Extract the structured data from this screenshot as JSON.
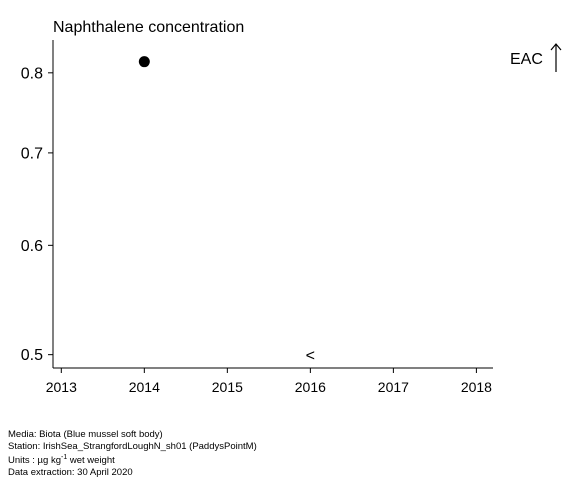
{
  "chart_data": {
    "type": "scatter",
    "title": "Naphthalene concentration",
    "xlabel": "",
    "ylabel": "",
    "xlim": [
      2012.9,
      2018.2
    ],
    "ylim": [
      0.489,
      0.845
    ],
    "y_scale": "log",
    "x_ticks": [
      2013,
      2014,
      2015,
      2016,
      2017,
      2018
    ],
    "y_ticks": [
      0.5,
      0.6,
      0.7,
      0.8
    ],
    "grid": false,
    "points": [
      {
        "x": 2014,
        "y": 0.815,
        "marker": "filled-circle"
      }
    ],
    "annotations": [
      {
        "x": 2016,
        "y": 0.5,
        "text": "<"
      },
      {
        "text": "EAC",
        "marker": "arrow-up",
        "position": "top-right"
      }
    ]
  },
  "footer": {
    "media": "Media: Biota (Blue mussel soft body)",
    "station": "Station: IrishSea_StrangfordLoughN_sh01 (PaddysPointM)",
    "units_prefix": "Units : µg kg",
    "units_exp": "-1",
    "units_suffix": " wet weight",
    "extraction": "Data extraction: 30 April 2020"
  }
}
